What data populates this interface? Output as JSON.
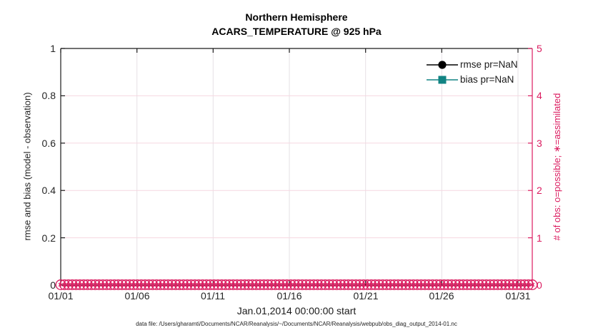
{
  "figure": {
    "title_line1": "Northern Hemisphere",
    "title_line2": "ACARS_TEMPERATURE @ 925 hPa",
    "xlabel": "Jan.01,2014 00:00:00 start",
    "caption": "data file: /Users/gharamti/Documents/NCAR/Reanalysis/~/Documents/NCAR/Reanalysis/webpub/obs_diag_output_2014-01.nc"
  },
  "legend": {
    "items": [
      {
        "label": "rmse pr=NaN",
        "color": "#000000",
        "marker": "filled-circle"
      },
      {
        "label": "bias pr=NaN",
        "color": "#118383",
        "marker": "filled-square"
      }
    ]
  },
  "chart_data": {
    "type": "line",
    "title": "Northern Hemisphere",
    "subtitle": "ACARS_TEMPERATURE @ 925 hPa",
    "xlabel": "Jan.01,2014 00:00:00 start",
    "x_ticks": [
      "01/01",
      "01/06",
      "01/11",
      "01/16",
      "01/21",
      "01/26",
      "01/31"
    ],
    "x_range_days": [
      0,
      31
    ],
    "grid": true,
    "legend_position": "top-right-inside",
    "left_axis": {
      "label": "rmse and bias (model - observation)",
      "ticks": [
        "0",
        "0.2",
        "0.4",
        "0.6",
        "0.8",
        "1"
      ],
      "range": [
        0,
        1
      ],
      "color": "#000000"
    },
    "right_axis": {
      "label": "# of obs: o=possible; ∗=assimilated",
      "ticks": [
        "0",
        "1",
        "2",
        "3",
        "4",
        "5"
      ],
      "range": [
        0,
        5
      ],
      "color": "#DB1C60"
    },
    "series": [
      {
        "name": "rmse pr=NaN",
        "style": "line-with-circle-marker",
        "color": "#000000",
        "values": "all NaN - no curve plotted"
      },
      {
        "name": "bias pr=NaN",
        "style": "line-with-square-marker",
        "color": "#118383",
        "values": "all NaN - no curve plotted"
      },
      {
        "name": "# of obs possible (o)",
        "style": "o-markers",
        "color": "#DB1C60",
        "constant_value": 0,
        "n_times": 124
      },
      {
        "name": "# of obs assimilated (*)",
        "style": "asterisk-markers",
        "color": "#DB1C60",
        "constant_value": 0,
        "n_times": 124
      }
    ]
  }
}
